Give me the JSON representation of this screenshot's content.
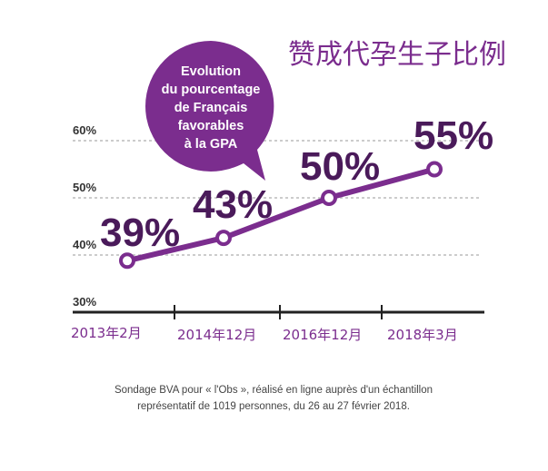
{
  "headline": "赞成代孕生子比例",
  "bubble_lines": [
    "Evolution",
    "du pourcentage",
    "de Français",
    "favorables",
    "à la GPA"
  ],
  "source_lines": [
    "Sondage BVA pour « l'Obs », réalisé en ligne auprès d'un échantillon",
    "représentatif de 1019 personnes, du 26 au 27 février 2018."
  ],
  "colors": {
    "line": "#7b2d8e",
    "bubble": "#7b2d8e",
    "value_text": "#4a1a5a",
    "grid": "#cccccc",
    "axis": "#222222"
  },
  "chart_data": {
    "type": "line",
    "categories": [
      "2013年2月",
      "2014年12月",
      "2016年12月",
      "2018年3月"
    ],
    "values": [
      39,
      43,
      50,
      55
    ],
    "value_labels": [
      "39%",
      "43%",
      "50%",
      "55%"
    ],
    "y_ticks": [
      "60%",
      "50%",
      "40%",
      "30%"
    ],
    "ylim": [
      30,
      60
    ],
    "grid": true
  }
}
